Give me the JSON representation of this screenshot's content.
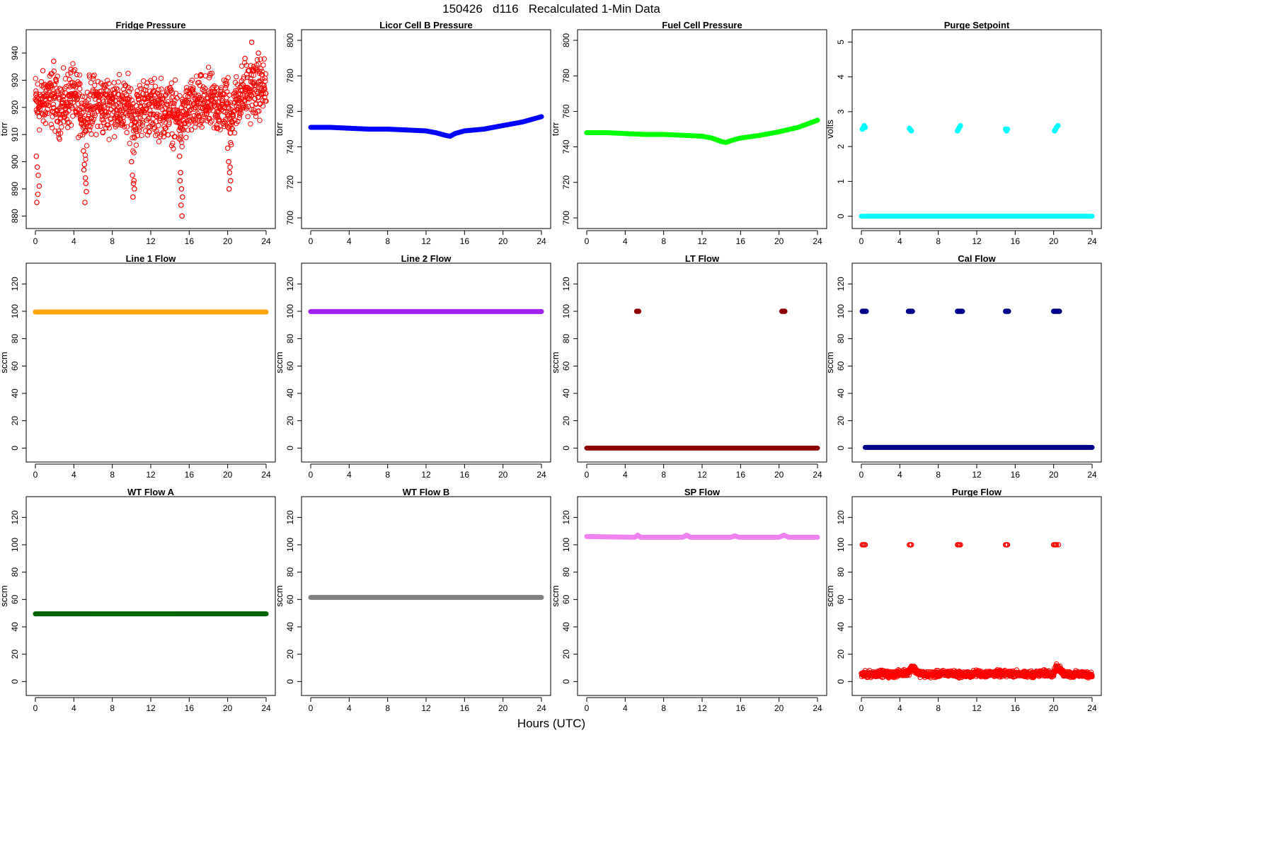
{
  "header": {
    "title": "150426   d116   Recalculated 1-Min Data",
    "xlabel": "Hours (UTC)"
  },
  "chart_data": [
    {
      "type": "scatter",
      "title": "Fridge Pressure",
      "ylabel": "torr",
      "xlim": [
        0,
        24
      ],
      "ylim": [
        878,
        946
      ],
      "yticks": [
        880,
        890,
        900,
        910,
        920,
        930,
        940
      ],
      "xticks": [
        0,
        4,
        8,
        12,
        16,
        20,
        24
      ],
      "color": "#ff0000",
      "marker": "open",
      "series": [
        {
          "x": [
            0,
            0.5,
            1,
            1.5,
            2,
            2.5,
            3,
            3.5,
            4,
            4.5,
            5,
            5.2,
            5.5,
            6,
            6.5,
            7,
            7.5,
            8,
            8.5,
            9,
            9.5,
            10,
            10.2,
            10.5,
            11,
            11.5,
            12,
            12.5,
            13,
            13.5,
            14,
            14.5,
            15,
            15.2,
            15.5,
            16,
            16.5,
            17,
            17.5,
            18,
            18.5,
            19,
            19.5,
            20,
            20.2,
            20.5,
            21,
            21.5,
            22,
            22.5,
            23,
            23.5,
            24
          ],
          "y": [
            922,
            921,
            923,
            924,
            922,
            920,
            921,
            923,
            924,
            921,
            918,
            915,
            920,
            921,
            922,
            920,
            921,
            922,
            921,
            919,
            920,
            920,
            913,
            917,
            920,
            921,
            920,
            919,
            920,
            918,
            919,
            917,
            916,
            912,
            918,
            919,
            920,
            921,
            920,
            922,
            921,
            920,
            921,
            922,
            914,
            918,
            923,
            925,
            926,
            927,
            926,
            928,
            927
          ]
        },
        {
          "x": [
            0.1,
            0.2,
            0.3,
            0.4,
            0.15,
            0.25
          ],
          "y": [
            902,
            898,
            895,
            891,
            885,
            888
          ]
        },
        {
          "x": [
            5.0,
            5.1,
            5.2,
            5.3,
            5.15,
            5.25,
            5.05
          ],
          "y": [
            904,
            899,
            894,
            889,
            885,
            892,
            897
          ]
        },
        {
          "x": [
            10.0,
            10.1,
            10.2,
            10.3,
            10.15,
            10.25
          ],
          "y": [
            900,
            895,
            892,
            890,
            887,
            893
          ]
        },
        {
          "x": [
            15.0,
            15.1,
            15.2,
            15.3,
            15.15,
            15.25,
            15.05
          ],
          "y": [
            902,
            896,
            890,
            887,
            884,
            880,
            893
          ]
        },
        {
          "x": [
            20.0,
            20.1,
            20.2,
            20.3,
            20.15,
            20.25
          ],
          "y": [
            905,
            900,
            896,
            893,
            890,
            898
          ]
        },
        {
          "x": [
            22.5,
            22.7,
            23.2,
            23.6,
            21.8,
            1.9,
            3.7
          ],
          "y": [
            944,
            935,
            940,
            932,
            938,
            937,
            934
          ]
        }
      ]
    },
    {
      "type": "line",
      "title": "Licor Cell B Pressure",
      "ylabel": "torr",
      "xlim": [
        0,
        24
      ],
      "ylim": [
        698,
        802
      ],
      "yticks": [
        700,
        720,
        740,
        760,
        780,
        800
      ],
      "xticks": [
        0,
        4,
        8,
        12,
        16,
        20,
        24
      ],
      "color": "#0000ff",
      "series": [
        {
          "x": [
            0,
            2,
            4,
            6,
            8,
            10,
            12,
            13,
            14,
            14.5,
            15,
            16,
            18,
            20,
            22,
            24
          ],
          "y": [
            751,
            751,
            750.5,
            750,
            750,
            749.5,
            749,
            748,
            746.5,
            746,
            747.5,
            749,
            750,
            752,
            754,
            757
          ]
        }
      ]
    },
    {
      "type": "line",
      "title": "Fuel Cell Pressure",
      "ylabel": "torr",
      "xlim": [
        0,
        24
      ],
      "ylim": [
        698,
        802
      ],
      "yticks": [
        700,
        720,
        740,
        760,
        780,
        800
      ],
      "xticks": [
        0,
        4,
        8,
        12,
        16,
        20,
        24
      ],
      "color": "#00ff00",
      "series": [
        {
          "x": [
            0,
            2,
            4,
            6,
            8,
            10,
            12,
            13,
            14,
            14.5,
            15,
            16,
            18,
            20,
            22,
            24
          ],
          "y": [
            748,
            748,
            747.5,
            747,
            747,
            746.5,
            746,
            745,
            743,
            742.5,
            743.5,
            745,
            746.5,
            748.5,
            751,
            755
          ]
        }
      ]
    },
    {
      "type": "scatter",
      "title": "Purge Setpoint",
      "ylabel": "volts",
      "xlim": [
        0,
        24
      ],
      "ylim": [
        -0.15,
        5.15
      ],
      "yticks": [
        0,
        1,
        2,
        3,
        4,
        5
      ],
      "xticks": [
        0,
        4,
        8,
        12,
        16,
        20,
        24
      ],
      "color": "#00ffff",
      "series": [
        {
          "x": [
            0,
            24
          ],
          "y": [
            0,
            0
          ],
          "style": "line"
        },
        {
          "x": [
            0.1,
            0.2,
            0.3,
            0.4,
            5.0,
            5.1,
            5.2,
            10.0,
            10.1,
            10.2,
            10.3,
            15.0,
            15.1,
            15.2,
            20.1,
            20.2,
            20.3,
            20.45
          ],
          "y": [
            2.5,
            2.55,
            2.6,
            2.55,
            2.52,
            2.48,
            2.45,
            2.45,
            2.5,
            2.55,
            2.6,
            2.5,
            2.45,
            2.5,
            2.45,
            2.5,
            2.55,
            2.6
          ]
        }
      ]
    },
    {
      "type": "line",
      "title": "Line 1 Flow",
      "ylabel": "sccm",
      "xlim": [
        0,
        24
      ],
      "ylim": [
        -5,
        130
      ],
      "yticks": [
        0,
        20,
        40,
        60,
        80,
        100,
        120
      ],
      "xticks": [
        0,
        4,
        8,
        12,
        16,
        20,
        24
      ],
      "color": "#ffa500",
      "series": [
        {
          "x": [
            0,
            24
          ],
          "y": [
            99.5,
            99.5
          ]
        }
      ]
    },
    {
      "type": "line",
      "title": "Line 2 Flow",
      "ylabel": "sccm",
      "xlim": [
        0,
        24
      ],
      "ylim": [
        -5,
        130
      ],
      "yticks": [
        0,
        20,
        40,
        60,
        80,
        100,
        120
      ],
      "xticks": [
        0,
        4,
        8,
        12,
        16,
        20,
        24
      ],
      "color": "#a020f0",
      "series": [
        {
          "x": [
            0,
            24
          ],
          "y": [
            99.8,
            99.8
          ]
        }
      ]
    },
    {
      "type": "scatter",
      "title": "LT Flow",
      "ylabel": "sccm",
      "xlim": [
        0,
        24
      ],
      "ylim": [
        -5,
        130
      ],
      "yticks": [
        0,
        20,
        40,
        60,
        80,
        100,
        120
      ],
      "xticks": [
        0,
        4,
        8,
        12,
        16,
        20,
        24
      ],
      "color": "#8b0000",
      "series": [
        {
          "x": [
            0,
            24
          ],
          "y": [
            0,
            0
          ],
          "style": "line"
        },
        {
          "x": [
            5.2,
            5.3,
            5.4,
            20.3,
            20.4,
            20.5,
            20.6
          ],
          "y": [
            100,
            100,
            100,
            100,
            100,
            100,
            100
          ]
        }
      ]
    },
    {
      "type": "scatter",
      "title": "Cal Flow",
      "ylabel": "sccm",
      "xlim": [
        0,
        24
      ],
      "ylim": [
        -5,
        130
      ],
      "yticks": [
        0,
        20,
        40,
        60,
        80,
        100,
        120
      ],
      "xticks": [
        0,
        4,
        8,
        12,
        16,
        20,
        24
      ],
      "color": "#00008b",
      "series": [
        {
          "x": [
            0.4,
            4.9,
            5.3,
            10.0,
            10.6,
            15.0,
            15.3,
            20.0,
            20.7,
            24
          ],
          "y": [
            0.5,
            0.5,
            0.5,
            0.5,
            0.5,
            0.5,
            0.5,
            0.5,
            0.5,
            0.5
          ],
          "style": "line"
        },
        {
          "x": [
            0.1,
            0.2,
            0.3,
            0.4,
            0.5,
            4.9,
            5.0,
            5.1,
            5.2,
            5.3,
            10.0,
            10.1,
            10.2,
            10.3,
            10.4,
            10.5,
            15.0,
            15.1,
            15.2,
            15.3,
            20.0,
            20.1,
            20.2,
            20.3,
            20.4,
            20.5,
            20.6
          ],
          "y": [
            100,
            100,
            100,
            100,
            100,
            100,
            100,
            100,
            100,
            100,
            100,
            100,
            100,
            100,
            100,
            100,
            100,
            100,
            100,
            100,
            100,
            100,
            100,
            100,
            100,
            100,
            100
          ]
        }
      ]
    },
    {
      "type": "line",
      "title": "WT Flow A",
      "ylabel": "sccm",
      "xlim": [
        0,
        24
      ],
      "ylim": [
        -5,
        130
      ],
      "yticks": [
        0,
        20,
        40,
        60,
        80,
        100,
        120
      ],
      "xticks": [
        0,
        4,
        8,
        12,
        16,
        20,
        24
      ],
      "color": "#006400",
      "series": [
        {
          "x": [
            0,
            24
          ],
          "y": [
            49.5,
            49.5
          ]
        }
      ]
    },
    {
      "type": "line",
      "title": "WT Flow B",
      "ylabel": "sccm",
      "xlim": [
        0,
        24
      ],
      "ylim": [
        -5,
        130
      ],
      "yticks": [
        0,
        20,
        40,
        60,
        80,
        100,
        120
      ],
      "xticks": [
        0,
        4,
        8,
        12,
        16,
        20,
        24
      ],
      "color": "#808080",
      "series": [
        {
          "x": [
            0,
            24
          ],
          "y": [
            61.5,
            61.5
          ]
        }
      ]
    },
    {
      "type": "line",
      "title": "SP Flow",
      "ylabel": "sccm",
      "xlim": [
        0,
        24
      ],
      "ylim": [
        -5,
        130
      ],
      "yticks": [
        0,
        20,
        40,
        60,
        80,
        100,
        120
      ],
      "xticks": [
        0,
        4,
        8,
        12,
        16,
        20,
        24
      ],
      "color": "#ee82ee",
      "series": [
        {
          "x": [
            0,
            5.0,
            5.3,
            5.6,
            10.0,
            10.4,
            10.8,
            15.0,
            15.4,
            15.8,
            20.0,
            20.5,
            21.0,
            24
          ],
          "y": [
            106,
            105.5,
            107,
            105.5,
            105.5,
            107,
            105.5,
            105.5,
            106.5,
            105.5,
            105.5,
            107,
            105.5,
            105.5
          ]
        }
      ]
    },
    {
      "type": "scatter",
      "title": "Purge Flow",
      "ylabel": "sccm",
      "xlim": [
        0,
        24
      ],
      "ylim": [
        -5,
        130
      ],
      "yticks": [
        0,
        20,
        40,
        60,
        80,
        100,
        120
      ],
      "xticks": [
        0,
        4,
        8,
        12,
        16,
        20,
        24
      ],
      "color": "#ff0000",
      "marker": "open",
      "series": [
        {
          "x": [
            0,
            1,
            2,
            3,
            4,
            5,
            5.2,
            6,
            7,
            8,
            9,
            10,
            11,
            12,
            13,
            14,
            15,
            16,
            17,
            18,
            19,
            20,
            20.3,
            21,
            22,
            23,
            24
          ],
          "y": [
            5,
            5.5,
            6,
            5,
            6,
            7,
            11,
            6,
            5,
            5.5,
            6,
            5.5,
            5,
            6,
            5.5,
            6,
            5.5,
            6,
            5,
            5.5,
            6,
            6,
            11,
            6,
            5,
            5.5,
            5
          ]
        },
        {
          "x": [
            0.1,
            0.2,
            0.3,
            0.4,
            5.0,
            5.1,
            5.2,
            10.0,
            10.1,
            10.2,
            10.3,
            15.0,
            15.1,
            15.2,
            20.0,
            20.1,
            20.2,
            20.3,
            20.5
          ],
          "y": [
            100,
            100,
            100,
            100,
            100,
            100,
            100,
            100,
            100,
            100,
            100,
            100,
            100,
            100,
            100,
            100,
            100,
            100,
            100
          ]
        }
      ]
    }
  ]
}
